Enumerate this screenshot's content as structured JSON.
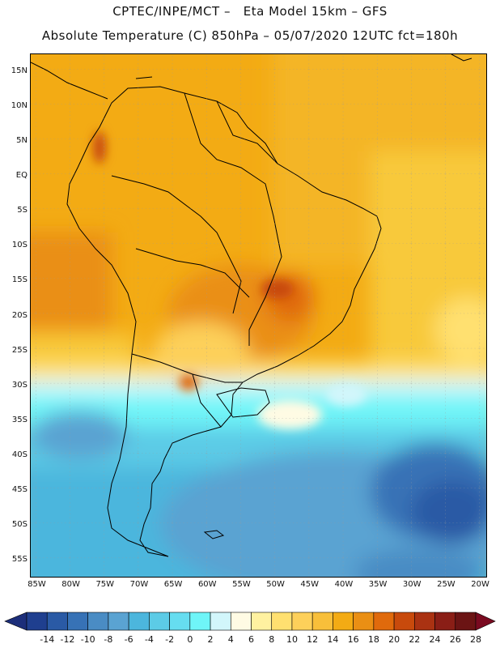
{
  "header": {
    "title_line1": "CPTEC/INPE/MCT –   Eta Model 15km – GFS",
    "title_line2": "Absolute Temperature (C) 850hPa – 05/07/2020 12UTC fct=180h"
  },
  "map": {
    "lat_labels": [
      "15N",
      "10N",
      "5N",
      "EQ",
      "5S",
      "10S",
      "15S",
      "20S",
      "25S",
      "30S",
      "35S",
      "40S",
      "45S",
      "50S",
      "55S"
    ],
    "lat_values": [
      15,
      10,
      5,
      0,
      -5,
      -10,
      -15,
      -20,
      -25,
      -30,
      -35,
      -40,
      -45,
      -50,
      -55
    ],
    "lon_labels": [
      "85W",
      "80W",
      "75W",
      "70W",
      "65W",
      "60W",
      "55W",
      "50W",
      "45W",
      "40W",
      "35W",
      "30W",
      "25W",
      "20W"
    ],
    "lon_values": [
      -85,
      -80,
      -75,
      -70,
      -65,
      -60,
      -55,
      -50,
      -45,
      -40,
      -35,
      -30,
      -25,
      -20
    ],
    "extent": {
      "lon_min": -86,
      "lon_max": -19,
      "lat_min": -57.5,
      "lat_max": 17.5
    }
  },
  "colorbar": {
    "labels": [
      "-14",
      "-12",
      "-10",
      "-8",
      "-6",
      "-4",
      "-2",
      "0",
      "2",
      "4",
      "6",
      "8",
      "10",
      "12",
      "14",
      "16",
      "18",
      "20",
      "22",
      "24",
      "26",
      "28"
    ],
    "colors": [
      "#1f3f8f",
      "#2a5aa5",
      "#3772b6",
      "#4a8cc4",
      "#5aa3d2",
      "#4cb6dd",
      "#5ccbe6",
      "#66ddf0",
      "#6ff5f8",
      "#d2f6fb",
      "#fffbe4",
      "#fff1a0",
      "#ffe070",
      "#fdd05a",
      "#f8bf3a",
      "#f3ab14",
      "#ea8f14",
      "#e06a0c",
      "#c84a0c",
      "#aa3212",
      "#8a1e16",
      "#6b1414"
    ],
    "under_color": "#1c2e7a",
    "over_color": "#7a0a20"
  }
}
